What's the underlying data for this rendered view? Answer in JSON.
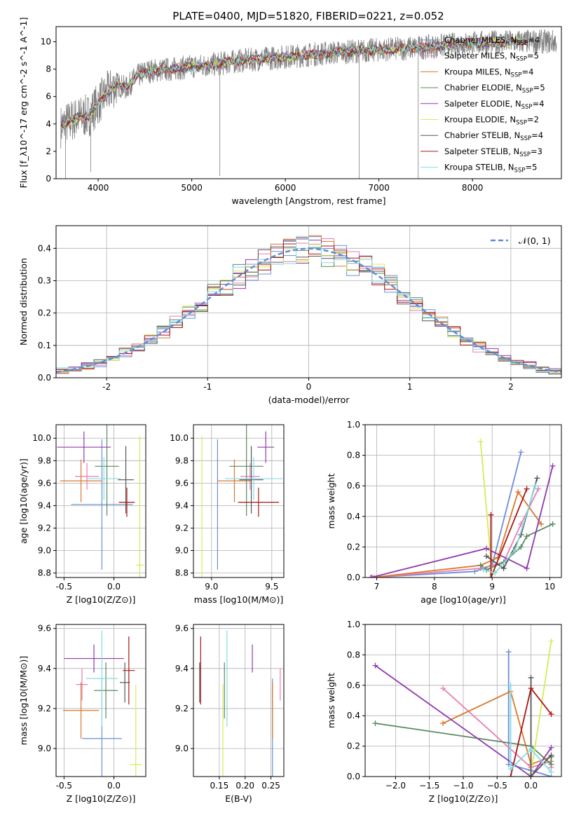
{
  "figure_title": "PLATE=0400, MJD=51820, FIBERID=0221, z=0.052",
  "models": [
    {
      "name": "Chabrier MILES",
      "n": 4,
      "color": "#6a8fd6"
    },
    {
      "name": "Salpeter MILES",
      "n": 5,
      "color": "#e87db2"
    },
    {
      "name": "Kroupa MILES",
      "n": 4,
      "color": "#d9782c"
    },
    {
      "name": "Chabrier ELODIE",
      "n": 5,
      "color": "#5a8a5e"
    },
    {
      "name": "Salpeter ELODIE",
      "n": 4,
      "color": "#8e3aad"
    },
    {
      "name": "Kroupa ELODIE",
      "n": 2,
      "color": "#d4ec5a"
    },
    {
      "name": "Chabrier STELIB",
      "n": 4,
      "color": "#555555"
    },
    {
      "name": "Salpeter STELIB",
      "n": 3,
      "color": "#a81616"
    },
    {
      "name": "Kroupa STELIB",
      "n": 5,
      "color": "#86dbe3"
    }
  ],
  "chart_data": [
    {
      "id": "spectrum",
      "type": "line",
      "xlabel": "wavelength [Angstrom, rest frame]",
      "ylabel": "Flux [f_λ10^-17 erg cm^-2 s^-1 A^-1]",
      "xlim": [
        3550,
        8950
      ],
      "ylim": [
        0,
        11.1
      ],
      "xticks": [
        4000,
        5000,
        6000,
        7000,
        8000
      ],
      "yticks": [
        0,
        2,
        4,
        6,
        8,
        10
      ],
      "continuum": {
        "x": [
          3600,
          3700,
          3800,
          3900,
          4000,
          4100,
          4200,
          4300,
          4400,
          4500,
          4600,
          4800,
          5000,
          5200,
          5500,
          6000,
          6500,
          7000,
          7500,
          8000,
          8500,
          8900
        ],
        "y": [
          3.8,
          4.2,
          4.5,
          4.6,
          5.5,
          6.3,
          6.9,
          6.6,
          7.4,
          7.8,
          7.9,
          8.0,
          8.2,
          8.3,
          8.6,
          8.9,
          9.2,
          9.4,
          9.6,
          9.9,
          10.0,
          10.0
        ]
      },
      "observed_color": "#808080"
    },
    {
      "id": "residuals",
      "type": "histogram",
      "xlabel": "(data-model)/error",
      "ylabel": "Normed distribution",
      "xlim": [
        -2.5,
        2.5
      ],
      "ylim": [
        0,
        0.47
      ],
      "xticks": [
        -2,
        -1,
        0,
        1,
        2
      ],
      "yticks": [
        0,
        0.1,
        0.2,
        0.3,
        0.4
      ],
      "bin_width": 0.125,
      "reference": {
        "label": "𝒩(0, 1)",
        "mean": 0,
        "sigma": 1,
        "color": "#5b8bd8"
      },
      "grid": true
    },
    {
      "id": "age_vs_Z",
      "type": "errorbar",
      "xlabel": "Z [log10(Z/Z⊙)]",
      "ylabel": "age [log10(age/yr)]",
      "xlim": [
        -0.58,
        0.32
      ],
      "ylim": [
        8.76,
        10.12
      ],
      "xticks": [
        -0.5,
        0.0
      ],
      "yticks": [
        8.8,
        9.0,
        9.2,
        9.4,
        9.6,
        9.8,
        10.0
      ],
      "points": [
        {
          "x": -0.12,
          "xerr": 0.31,
          "y": 9.41,
          "yerr": 0.58
        },
        {
          "x": -0.27,
          "xerr": 0.12,
          "y": 9.66,
          "yerr": 0.12
        },
        {
          "x": -0.33,
          "xerr": 0.21,
          "y": 9.62,
          "yerr": 0.19
        },
        {
          "x": -0.07,
          "xerr": 0.12,
          "y": 9.75,
          "yerr": 0.44
        },
        {
          "x": -0.3,
          "xerr": 0.27,
          "y": 9.92,
          "yerr": 0.14
        },
        {
          "x": 0.26,
          "xerr": 0.04,
          "y": 8.87,
          "yerr": 1.15
        },
        {
          "x": 0.12,
          "xerr": 0.08,
          "y": 9.63,
          "yerr": 0.3
        },
        {
          "x": 0.13,
          "xerr": 0.08,
          "y": 9.43,
          "yerr": 0.13
        },
        {
          "x": -0.1,
          "xerr": 0.17,
          "y": 9.64,
          "yerr": 0.19
        }
      ]
    },
    {
      "id": "age_vs_mass",
      "type": "errorbar",
      "xlabel": "mass [log10(M/M⊙)]",
      "ylabel": "",
      "xlim": [
        8.85,
        9.6
      ],
      "ylim": [
        8.76,
        10.12
      ],
      "xticks": [
        9.0,
        9.5
      ],
      "yticks": [
        8.8,
        9.0,
        9.2,
        9.4,
        9.6,
        9.8,
        10.0
      ],
      "points": [
        {
          "x": 9.05,
          "xerr": 0.0,
          "y": 9.41,
          "yerr": 0.58
        },
        {
          "x": 9.32,
          "xerr": 0.08,
          "y": 9.66,
          "yerr": 0.12
        },
        {
          "x": 9.19,
          "xerr": 0.14,
          "y": 9.62,
          "yerr": 0.19
        },
        {
          "x": 9.29,
          "xerr": 0.14,
          "y": 9.75,
          "yerr": 0.44
        },
        {
          "x": 9.45,
          "xerr": 0.07,
          "y": 9.92,
          "yerr": 0.14
        },
        {
          "x": 8.92,
          "xerr": 0.0,
          "y": 8.87,
          "yerr": 1.15
        },
        {
          "x": 9.33,
          "xerr": 0.1,
          "y": 9.63,
          "yerr": 0.3
        },
        {
          "x": 9.39,
          "xerr": 0.17,
          "y": 9.43,
          "yerr": 0.13
        },
        {
          "x": 9.35,
          "xerr": 0.24,
          "y": 9.64,
          "yerr": 0.19
        }
      ]
    },
    {
      "id": "massweight_vs_age",
      "type": "line",
      "xlabel": "age [log10(age/yr)]",
      "ylabel": "mass weight",
      "xlim": [
        6.8,
        10.2
      ],
      "ylim": [
        0,
        1.0
      ],
      "xticks": [
        7,
        8,
        9,
        10
      ],
      "yticks": [
        0.0,
        0.2,
        0.4,
        0.6,
        0.8,
        1.0
      ],
      "series": [
        {
          "x": [
            6.9,
            8.7,
            9.0,
            9.5
          ],
          "y": [
            0.0,
            0.04,
            0.08,
            0.82
          ]
        },
        {
          "x": [
            6.95,
            8.8,
            9.2,
            9.5,
            9.8
          ],
          "y": [
            0.0,
            0.06,
            0.1,
            0.35,
            0.58
          ]
        },
        {
          "x": [
            6.92,
            8.8,
            9.1,
            9.45,
            9.85
          ],
          "y": [
            0.0,
            0.08,
            0.13,
            0.56,
            0.35
          ]
        },
        {
          "x": [
            8.8,
            8.9,
            9.2,
            9.5,
            9.6,
            10.05
          ],
          "y": [
            0.08,
            0.05,
            0.1,
            0.2,
            0.27,
            0.35
          ]
        },
        {
          "x": [
            6.9,
            8.9,
            9.6,
            10.05
          ],
          "y": [
            0.0,
            0.19,
            0.06,
            0.73
          ]
        },
        {
          "x": [
            8.8,
            9.0
          ],
          "y": [
            0.89,
            0.02
          ]
        },
        {
          "x": [
            8.9,
            9.2,
            9.5,
            9.78
          ],
          "y": [
            0.14,
            0.06,
            0.28,
            0.65
          ]
        },
        {
          "x": [
            8.98,
            8.98,
            9.6
          ],
          "y": [
            0.41,
            0.0,
            0.58
          ]
        },
        {
          "x": [
            8.85,
            9.05,
            9.4,
            9.75
          ],
          "y": [
            0.05,
            0.03,
            0.18,
            0.6
          ]
        }
      ]
    },
    {
      "id": "mass_vs_Z",
      "type": "errorbar",
      "xlabel": "Z [log10(Z/Z⊙)]",
      "ylabel": "mass [log10(M/M⊙)]",
      "xlim": [
        -0.58,
        0.32
      ],
      "ylim": [
        8.86,
        9.62
      ],
      "xticks": [
        -0.5,
        0.0
      ],
      "yticks": [
        9.0,
        9.2,
        9.4,
        9.6
      ],
      "points": [
        {
          "x": -0.12,
          "xerr": 0.2,
          "y": 9.05,
          "yerr": 0.3
        },
        {
          "x": -0.32,
          "xerr": 0.06,
          "y": 9.32,
          "yerr": 0.08
        },
        {
          "x": -0.33,
          "xerr": 0.18,
          "y": 9.19,
          "yerr": 0.14
        },
        {
          "x": -0.08,
          "xerr": 0.12,
          "y": 9.29,
          "yerr": 0.14
        },
        {
          "x": -0.2,
          "xerr": 0.3,
          "y": 9.45,
          "yerr": 0.07
        },
        {
          "x": 0.22,
          "xerr": 0.06,
          "y": 8.92,
          "yerr": 0.4
        },
        {
          "x": 0.11,
          "xerr": 0.05,
          "y": 9.33,
          "yerr": 0.1
        },
        {
          "x": 0.15,
          "xerr": 0.06,
          "y": 9.39,
          "yerr": 0.17
        },
        {
          "x": -0.12,
          "xerr": 0.16,
          "y": 9.35,
          "yerr": 0.24
        }
      ]
    },
    {
      "id": "mass_vs_ebv",
      "type": "errorbar",
      "xlabel": "E(B-V)",
      "ylabel": "",
      "xlim": [
        0.1,
        0.275
      ],
      "ylim": [
        8.86,
        9.62
      ],
      "xticks": [
        0.15,
        0.2,
        0.25
      ],
      "yticks": [
        9.0,
        9.2,
        9.4,
        9.6
      ],
      "points": [
        {
          "x": 0.253,
          "xerr": 0,
          "y": 9.05,
          "yerr": 0.3
        },
        {
          "x": 0.268,
          "xerr": 0,
          "y": 9.32,
          "yerr": 0.08
        },
        {
          "x": 0.253,
          "xerr": 0,
          "y": 9.19,
          "yerr": 0.14
        },
        {
          "x": 0.16,
          "xerr": 0,
          "y": 9.29,
          "yerr": 0.14
        },
        {
          "x": 0.214,
          "xerr": 0,
          "y": 9.45,
          "yerr": 0.07
        },
        {
          "x": 0.157,
          "xerr": 0,
          "y": 8.92,
          "yerr": 0.4
        },
        {
          "x": 0.112,
          "xerr": 0,
          "y": 9.33,
          "yerr": 0.1
        },
        {
          "x": 0.114,
          "xerr": 0,
          "y": 9.39,
          "yerr": 0.17
        },
        {
          "x": 0.165,
          "xerr": 0,
          "y": 9.35,
          "yerr": 0.24
        }
      ]
    },
    {
      "id": "massweight_vs_Z",
      "type": "line",
      "xlabel": "Z [log10(Z/Z⊙)]",
      "ylabel": "mass weight",
      "xlim": [
        -2.45,
        0.45
      ],
      "ylim": [
        0,
        1.0
      ],
      "xticks": [
        -2.0,
        -1.5,
        -1.0,
        -0.5,
        0.0
      ],
      "yticks": [
        0.0,
        0.2,
        0.4,
        0.6,
        0.8,
        1.0
      ],
      "series": [
        {
          "x": [
            -0.33,
            -0.33,
            0.0,
            0.3
          ],
          "y": [
            0.82,
            0.08,
            0.04,
            0.0
          ]
        },
        {
          "x": [
            -1.3,
            0.0,
            0.3,
            0.3
          ],
          "y": [
            0.58,
            0.06,
            0.1,
            0.06
          ]
        },
        {
          "x": [
            -1.3,
            -0.3,
            0.0,
            0.3
          ],
          "y": [
            0.35,
            0.56,
            0.08,
            0.13
          ]
        },
        {
          "x": [
            -2.3,
            0.0,
            0.3,
            0.3
          ],
          "y": [
            0.35,
            0.2,
            0.08,
            0.13
          ]
        },
        {
          "x": [
            -2.3,
            0.0,
            0.3
          ],
          "y": [
            0.73,
            0.0,
            0.19
          ]
        },
        {
          "x": [
            0.0,
            0.3
          ],
          "y": [
            0.02,
            0.89
          ]
        },
        {
          "x": [
            0.0,
            0.0,
            0.3
          ],
          "y": [
            0.65,
            0.0,
            0.14
          ]
        },
        {
          "x": [
            -0.3,
            0.0,
            0.3
          ],
          "y": [
            0.0,
            0.58,
            0.41
          ]
        },
        {
          "x": [
            -0.3,
            -0.3,
            0.0,
            0.3
          ],
          "y": [
            0.6,
            0.05,
            0.18,
            0.03
          ]
        }
      ]
    }
  ]
}
